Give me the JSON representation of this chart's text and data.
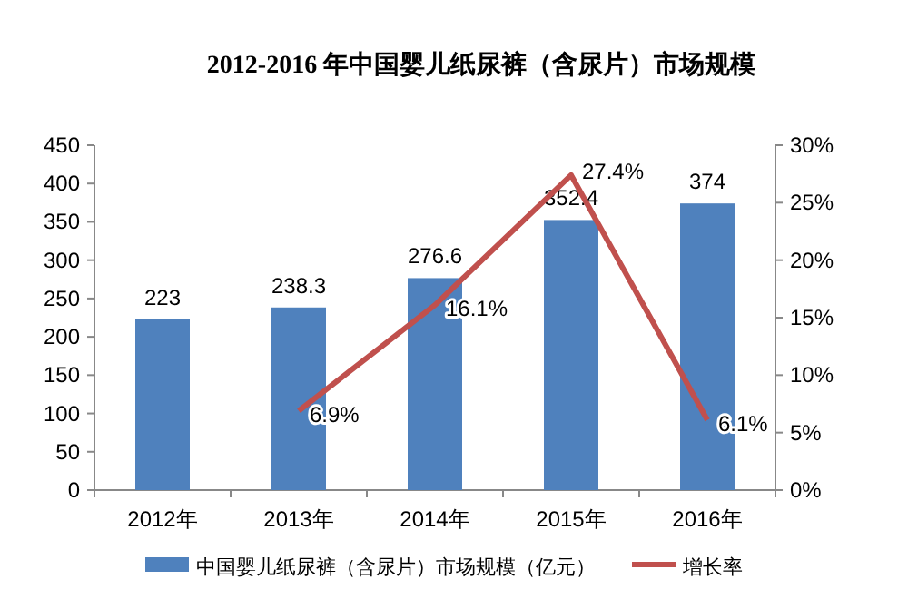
{
  "chart_data": {
    "type": "bar",
    "title": "2012-2016 年中国婴儿纸尿裤（含尿片）市场规模",
    "categories": [
      "2012年",
      "2013年",
      "2014年",
      "2015年",
      "2016年"
    ],
    "series": [
      {
        "name": "中国婴儿纸尿裤（含尿片）市场规模（亿元）",
        "color": "#4f81bd",
        "values": [
          223,
          238.3,
          276.6,
          352.4,
          374
        ],
        "data_labels": true
      },
      {
        "name": "增长率",
        "type": "line",
        "axis": "y2",
        "color": "#c0504d",
        "values": [
          null,
          6.9,
          16.1,
          27.4,
          6.1
        ],
        "value_labels": [
          null,
          "6.9%",
          "16.1%",
          "27.4%",
          "6.1%"
        ]
      }
    ],
    "ylim": [
      0,
      450
    ],
    "yticks": [
      0,
      50,
      100,
      150,
      200,
      250,
      300,
      350,
      400,
      450
    ],
    "y2lim": [
      0,
      30
    ],
    "y2ticks": [
      {
        "value": 0,
        "label": "0%"
      },
      {
        "value": 5,
        "label": "5%"
      },
      {
        "value": 10,
        "label": "10%"
      },
      {
        "value": 15,
        "label": "15%"
      },
      {
        "value": 20,
        "label": "20%"
      },
      {
        "value": 25,
        "label": "25%"
      },
      {
        "value": 30,
        "label": "30%"
      }
    ],
    "grid": false,
    "legend": "bottom",
    "marker": "none",
    "line_style": "solid"
  }
}
